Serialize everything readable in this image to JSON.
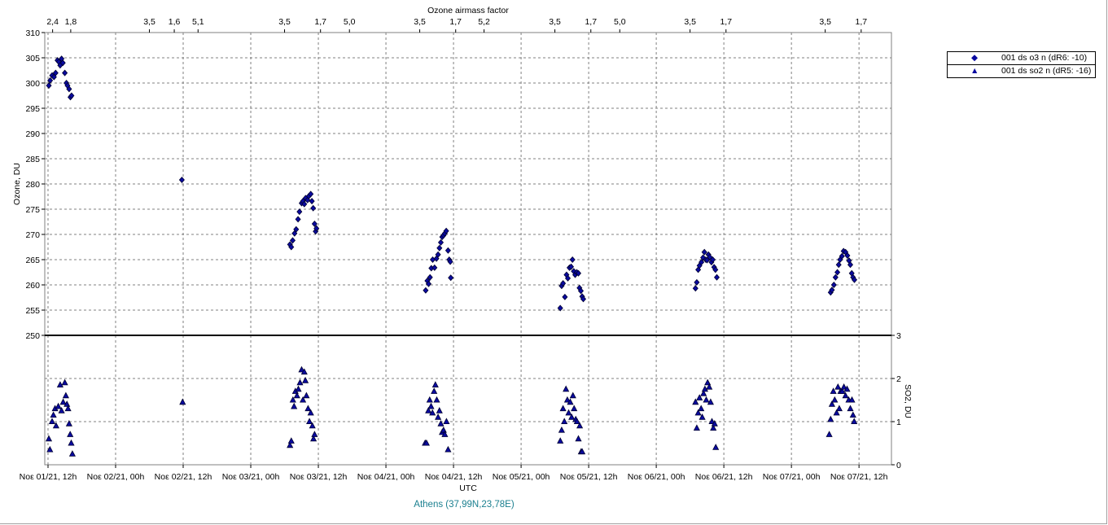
{
  "chart_data": {
    "type": "scatter",
    "top_axis": {
      "label": "Ozone airmass factor",
      "ticks": [
        {
          "at": 0.017,
          "label": "2,4"
        },
        {
          "at": 0.084,
          "label": "1,8"
        },
        {
          "at": 0.375,
          "label": "3,5"
        },
        {
          "at": 0.467,
          "label": "1,6"
        },
        {
          "at": 0.555,
          "label": "5,1"
        },
        {
          "at": 0.875,
          "label": "3,5"
        },
        {
          "at": 1.008,
          "label": "1,7"
        },
        {
          "at": 1.115,
          "label": "5,0"
        },
        {
          "at": 1.375,
          "label": "3,5"
        },
        {
          "at": 1.508,
          "label": "1,7"
        },
        {
          "at": 1.613,
          "label": "5,2"
        },
        {
          "at": 1.875,
          "label": "3,5"
        },
        {
          "at": 2.008,
          "label": "1,7"
        },
        {
          "at": 2.115,
          "label": "5,0"
        },
        {
          "at": 2.375,
          "label": "3,5"
        },
        {
          "at": 2.508,
          "label": "1,7"
        },
        {
          "at": 2.875,
          "label": "3,5"
        },
        {
          "at": 3.008,
          "label": "1,7"
        }
      ]
    },
    "x_axis": {
      "label": "UTC",
      "range": [
        -0.012,
        3.12
      ],
      "ticks": [
        {
          "at": 0,
          "label": "Νοε 01/21, 12h"
        },
        {
          "at": 0.25,
          "label": "Νοε 02/21, 00h"
        },
        {
          "at": 0.5,
          "label": "Νοε 02/21, 12h"
        },
        {
          "at": 0.75,
          "label": "Νοε 03/21, 00h"
        },
        {
          "at": 1,
          "label": "Νοε 03/21, 12h"
        },
        {
          "at": 1.25,
          "label": "Νοε 04/21, 00h"
        },
        {
          "at": 1.5,
          "label": "Νοε 04/21, 12h"
        },
        {
          "at": 1.75,
          "label": "Νοε 05/21, 00h"
        },
        {
          "at": 2,
          "label": "Νοε 05/21, 12h"
        },
        {
          "at": 2.25,
          "label": "Νοε 06/21, 00h"
        },
        {
          "at": 2.5,
          "label": "Νοε 06/21, 12h"
        },
        {
          "at": 2.75,
          "label": "Νοε 07/21, 00h"
        },
        {
          "at": 3,
          "label": "Νοε 07/21, 12h"
        }
      ]
    },
    "y_axis_left": {
      "label": "Ozone, DU",
      "range": [
        250,
        310
      ],
      "ticks": [
        250,
        255,
        260,
        265,
        270,
        275,
        280,
        285,
        290,
        295,
        300,
        305,
        310
      ]
    },
    "y_axis_right": {
      "label": "SO2, DU",
      "range": [
        0,
        3
      ],
      "ticks": [
        0,
        1,
        2,
        3
      ]
    },
    "grid": true,
    "legend_position": "right",
    "station": "Athens (37,99N,23,78E)",
    "series": [
      {
        "name": "001 ds o3  n (dR6: -10)",
        "marker": "diamond",
        "axis": "left",
        "color": "#0a0aa0",
        "points": [
          [
            0.003,
            299.5
          ],
          [
            0.008,
            300.5
          ],
          [
            0.015,
            301.5
          ],
          [
            0.022,
            301.2
          ],
          [
            0.028,
            302.0
          ],
          [
            0.035,
            304.5
          ],
          [
            0.04,
            304.2
          ],
          [
            0.045,
            303.5
          ],
          [
            0.05,
            304.8
          ],
          [
            0.055,
            304.0
          ],
          [
            0.062,
            302.0
          ],
          [
            0.068,
            300.0
          ],
          [
            0.072,
            299.5
          ],
          [
            0.078,
            298.8
          ],
          [
            0.083,
            297.2
          ],
          [
            0.087,
            297.5
          ],
          [
            0.495,
            280.8
          ],
          [
            0.895,
            268.0
          ],
          [
            0.9,
            267.5
          ],
          [
            0.905,
            268.8
          ],
          [
            0.912,
            270.2
          ],
          [
            0.918,
            271.0
          ],
          [
            0.925,
            273.0
          ],
          [
            0.93,
            274.5
          ],
          [
            0.938,
            276.2
          ],
          [
            0.943,
            276.6
          ],
          [
            0.948,
            276.0
          ],
          [
            0.953,
            277.2
          ],
          [
            0.96,
            276.8
          ],
          [
            0.965,
            277.6
          ],
          [
            0.972,
            278.0
          ],
          [
            0.976,
            276.6
          ],
          [
            0.981,
            275.2
          ],
          [
            0.986,
            272.1
          ],
          [
            0.99,
            270.6
          ],
          [
            0.993,
            271.2
          ],
          [
            1.397,
            258.9
          ],
          [
            1.403,
            260.8
          ],
          [
            1.408,
            260.2
          ],
          [
            1.413,
            261.5
          ],
          [
            1.418,
            263.3
          ],
          [
            1.423,
            265.0
          ],
          [
            1.43,
            263.4
          ],
          [
            1.437,
            265.2
          ],
          [
            1.443,
            266.0
          ],
          [
            1.448,
            267.3
          ],
          [
            1.453,
            268.4
          ],
          [
            1.458,
            269.5
          ],
          [
            1.463,
            269.8
          ],
          [
            1.468,
            270.2
          ],
          [
            1.473,
            270.7
          ],
          [
            1.48,
            266.8
          ],
          [
            1.484,
            265.0
          ],
          [
            1.488,
            264.6
          ],
          [
            1.49,
            261.4
          ],
          [
            1.895,
            255.4
          ],
          [
            1.9,
            259.8
          ],
          [
            1.905,
            260.3
          ],
          [
            1.912,
            257.6
          ],
          [
            1.918,
            262.0
          ],
          [
            1.923,
            261.3
          ],
          [
            1.929,
            263.4
          ],
          [
            1.935,
            263.6
          ],
          [
            1.94,
            265.0
          ],
          [
            1.945,
            262.7
          ],
          [
            1.95,
            262.0
          ],
          [
            1.956,
            262.5
          ],
          [
            1.962,
            262.3
          ],
          [
            1.966,
            259.4
          ],
          [
            1.971,
            258.8
          ],
          [
            1.976,
            257.7
          ],
          [
            1.98,
            257.2
          ],
          [
            2.395,
            259.3
          ],
          [
            2.4,
            260.5
          ],
          [
            2.405,
            263.0
          ],
          [
            2.41,
            263.8
          ],
          [
            2.417,
            264.5
          ],
          [
            2.423,
            265.4
          ],
          [
            2.428,
            266.5
          ],
          [
            2.433,
            265.0
          ],
          [
            2.438,
            264.9
          ],
          [
            2.443,
            266.0
          ],
          [
            2.448,
            265.5
          ],
          [
            2.454,
            264.5
          ],
          [
            2.459,
            265.0
          ],
          [
            2.464,
            263.5
          ],
          [
            2.469,
            263.0
          ],
          [
            2.474,
            261.5
          ],
          [
            2.895,
            258.5
          ],
          [
            2.9,
            259.0
          ],
          [
            2.907,
            260.0
          ],
          [
            2.913,
            261.5
          ],
          [
            2.92,
            262.5
          ],
          [
            2.925,
            264.0
          ],
          [
            2.93,
            265.0
          ],
          [
            2.937,
            265.7
          ],
          [
            2.943,
            266.7
          ],
          [
            2.95,
            266.5
          ],
          [
            2.957,
            265.8
          ],
          [
            2.963,
            264.8
          ],
          [
            2.968,
            264.0
          ],
          [
            2.973,
            262.3
          ],
          [
            2.978,
            261.5
          ],
          [
            2.983,
            261.0
          ]
        ]
      },
      {
        "name": "001 ds so2 n (dR5: -16)",
        "marker": "triangle",
        "axis": "right",
        "color": "#0a0aa0",
        "points": [
          [
            0.003,
            0.6
          ],
          [
            0.007,
            0.35
          ],
          [
            0.015,
            1.0
          ],
          [
            0.02,
            1.15
          ],
          [
            0.026,
            1.3
          ],
          [
            0.03,
            0.9
          ],
          [
            0.038,
            1.35
          ],
          [
            0.045,
            1.85
          ],
          [
            0.05,
            1.25
          ],
          [
            0.056,
            1.45
          ],
          [
            0.062,
            1.9
          ],
          [
            0.066,
            1.6
          ],
          [
            0.07,
            1.4
          ],
          [
            0.074,
            1.3
          ],
          [
            0.078,
            0.95
          ],
          [
            0.082,
            0.7
          ],
          [
            0.086,
            0.5
          ],
          [
            0.09,
            0.25
          ],
          [
            0.498,
            1.45
          ],
          [
            0.895,
            0.45
          ],
          [
            0.9,
            0.55
          ],
          [
            0.906,
            1.5
          ],
          [
            0.91,
            1.35
          ],
          [
            0.915,
            1.7
          ],
          [
            0.921,
            1.6
          ],
          [
            0.926,
            1.75
          ],
          [
            0.932,
            1.9
          ],
          [
            0.938,
            2.2
          ],
          [
            0.943,
            1.5
          ],
          [
            0.948,
            2.15
          ],
          [
            0.952,
            1.95
          ],
          [
            0.956,
            1.6
          ],
          [
            0.962,
            1.3
          ],
          [
            0.967,
            1.0
          ],
          [
            0.972,
            1.2
          ],
          [
            0.978,
            0.9
          ],
          [
            0.982,
            0.6
          ],
          [
            0.986,
            0.7
          ],
          [
            1.395,
            0.5
          ],
          [
            1.4,
            0.5
          ],
          [
            1.407,
            1.25
          ],
          [
            1.412,
            1.5
          ],
          [
            1.417,
            1.35
          ],
          [
            1.422,
            1.2
          ],
          [
            1.428,
            1.7
          ],
          [
            1.433,
            1.85
          ],
          [
            1.438,
            1.5
          ],
          [
            1.443,
            1.1
          ],
          [
            1.448,
            1.25
          ],
          [
            1.453,
            0.95
          ],
          [
            1.458,
            0.75
          ],
          [
            1.463,
            0.8
          ],
          [
            1.468,
            0.7
          ],
          [
            1.474,
            1.0
          ],
          [
            1.48,
            0.35
          ],
          [
            1.895,
            0.55
          ],
          [
            1.9,
            0.8
          ],
          [
            1.905,
            1.3
          ],
          [
            1.91,
            1.0
          ],
          [
            1.916,
            1.75
          ],
          [
            1.921,
            1.5
          ],
          [
            1.926,
            1.2
          ],
          [
            1.932,
            1.45
          ],
          [
            1.937,
            1.1
          ],
          [
            1.942,
            1.6
          ],
          [
            1.946,
            1.3
          ],
          [
            1.952,
            1.05
          ],
          [
            1.957,
            1.0
          ],
          [
            1.962,
            0.6
          ],
          [
            1.967,
            0.9
          ],
          [
            1.972,
            0.3
          ],
          [
            1.976,
            0.3
          ],
          [
            2.395,
            1.45
          ],
          [
            2.4,
            0.85
          ],
          [
            2.405,
            1.2
          ],
          [
            2.41,
            1.55
          ],
          [
            2.416,
            1.3
          ],
          [
            2.42,
            1.1
          ],
          [
            2.425,
            1.65
          ],
          [
            2.43,
            1.75
          ],
          [
            2.435,
            1.5
          ],
          [
            2.44,
            1.9
          ],
          [
            2.446,
            1.8
          ],
          [
            2.451,
            1.45
          ],
          [
            2.456,
            1.0
          ],
          [
            2.461,
            0.85
          ],
          [
            2.466,
            0.95
          ],
          [
            2.47,
            0.4
          ],
          [
            2.89,
            0.7
          ],
          [
            2.895,
            1.05
          ],
          [
            2.9,
            1.4
          ],
          [
            2.905,
            1.7
          ],
          [
            2.91,
            1.5
          ],
          [
            2.917,
            1.2
          ],
          [
            2.922,
            1.8
          ],
          [
            2.927,
            1.3
          ],
          [
            2.932,
            1.7
          ],
          [
            2.938,
            1.7
          ],
          [
            2.944,
            1.8
          ],
          [
            2.95,
            1.6
          ],
          [
            2.956,
            1.75
          ],
          [
            2.962,
            1.5
          ],
          [
            2.968,
            1.3
          ],
          [
            2.974,
            1.5
          ],
          [
            2.978,
            1.15
          ],
          [
            2.982,
            1.0
          ]
        ]
      }
    ]
  }
}
